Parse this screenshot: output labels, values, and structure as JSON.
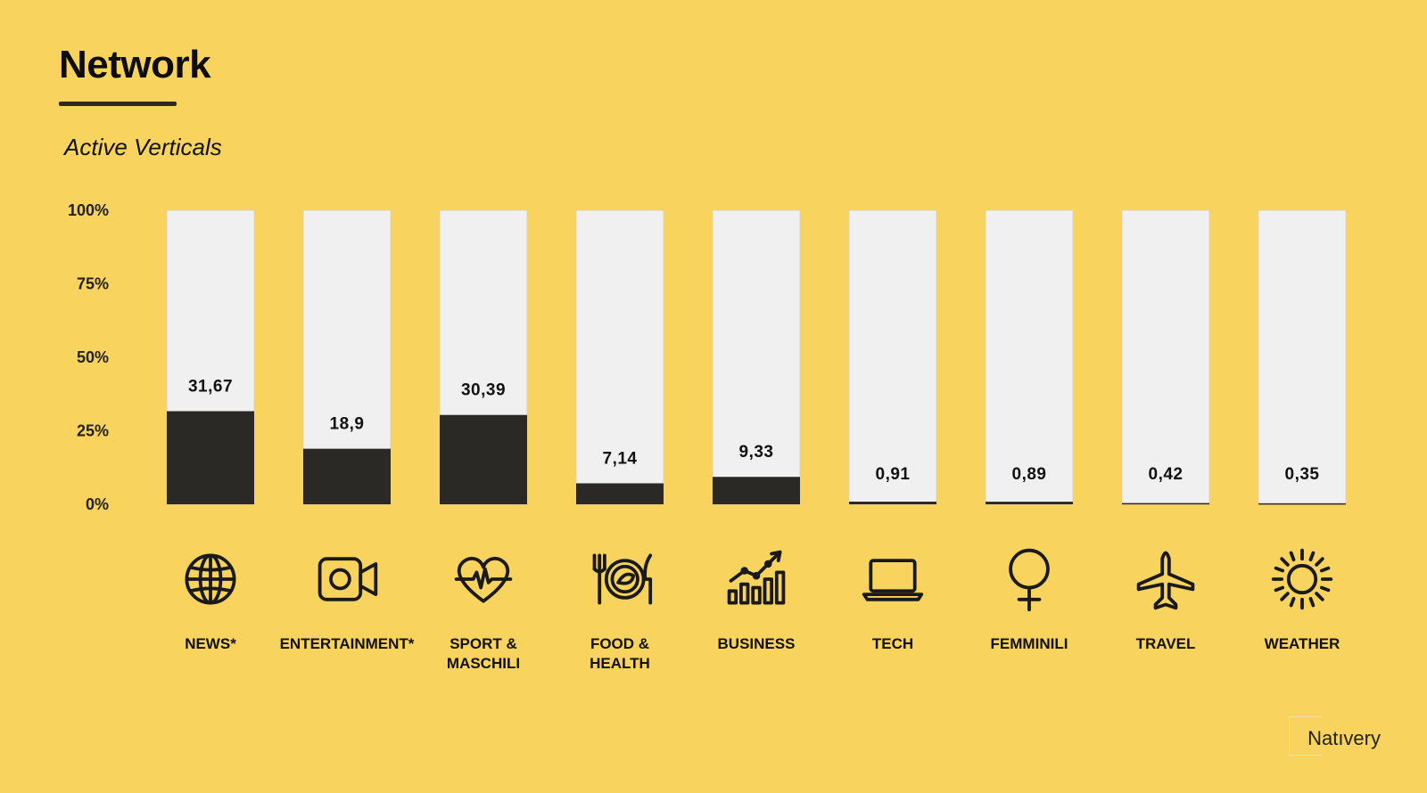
{
  "page": {
    "title": "Network",
    "subtitle": "Active Verticals",
    "logo_text": "Natıvery"
  },
  "colors": {
    "background": "#F8D35E",
    "bar_track": "#F0F0F0",
    "bar_fill": "#2B2926"
  },
  "chart_data": {
    "type": "bar",
    "title": "",
    "xlabel": "",
    "ylabel": "",
    "ylim": [
      0,
      100
    ],
    "yticks": [
      "100%",
      "75%",
      "50%",
      "25%",
      "0%"
    ],
    "yticks_values": [
      100,
      75,
      50,
      25,
      0
    ],
    "categories": [
      "NEWS*",
      "ENTERTAINMENT*",
      "SPORT &\nMASCHILI",
      "FOOD &\nHEALTH",
      "BUSINESS",
      "TECH",
      "FEMMINILI",
      "TRAVEL",
      "WEATHER"
    ],
    "values": [
      31.67,
      18.9,
      30.39,
      7.14,
      9.33,
      0.91,
      0.89,
      0.42,
      0.35
    ],
    "value_labels": [
      "31,67",
      "18,9",
      "30,39",
      "7,14",
      "9,33",
      "0,91",
      "0,89",
      "0,42",
      "0,35"
    ],
    "icons": [
      "globe-icon",
      "video-camera-icon",
      "heart-pulse-icon",
      "fork-plate-knife-icon",
      "growth-chart-icon",
      "laptop-icon",
      "female-symbol-icon",
      "airplane-icon",
      "sun-icon"
    ],
    "grid": false,
    "legend": "none"
  }
}
